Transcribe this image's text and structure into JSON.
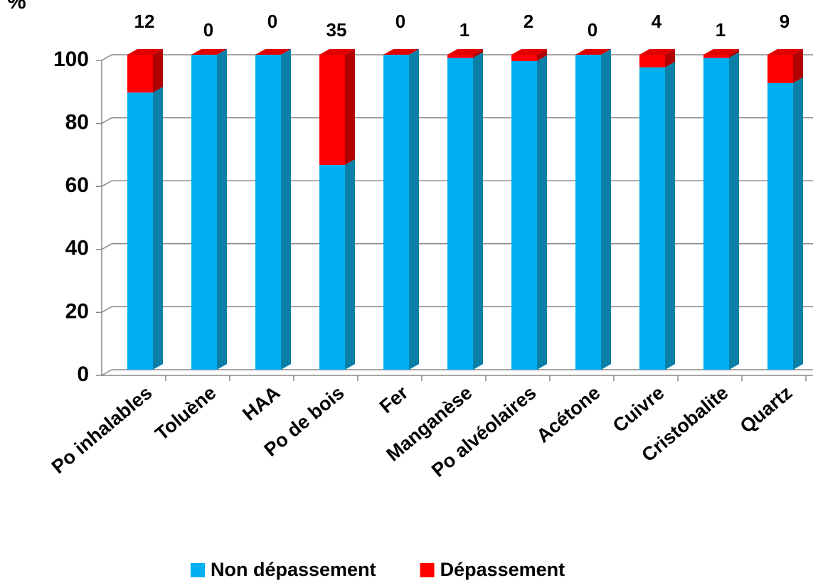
{
  "chart_data": {
    "type": "bar",
    "stacked": true,
    "three_d": true,
    "y_label": "%",
    "categories": [
      "Po inhalables",
      "Toluène",
      "HAA",
      "Po de bois",
      "Fer",
      "Manganèse",
      "Po alvéolaires",
      "Acétone",
      "Cuivre",
      "Cristobalite",
      "Quartz"
    ],
    "series": [
      {
        "name": "Non dépassement",
        "color": "#00b0f0",
        "side_color": "#0a7fa8",
        "values": [
          88,
          100,
          100,
          65,
          100,
          99,
          98,
          100,
          96,
          99,
          91
        ]
      },
      {
        "name": "Dépassement",
        "color": "#ff0000",
        "side_color": "#b00000",
        "values": [
          12,
          0,
          0,
          35,
          0,
          1,
          2,
          0,
          4,
          1,
          9
        ],
        "data_labels": true
      }
    ],
    "ylim": [
      0,
      100
    ],
    "yticks": [
      0,
      20,
      40,
      60,
      80,
      100
    ],
    "grid": true,
    "legend": "bottom"
  }
}
